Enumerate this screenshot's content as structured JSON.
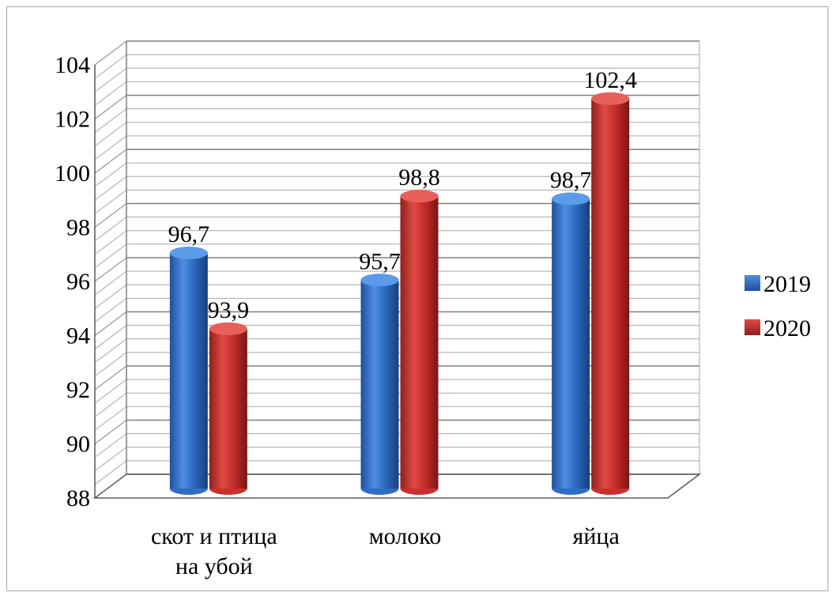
{
  "chart_data": {
    "type": "bar",
    "title": "",
    "xlabel": "",
    "ylabel": "",
    "categories": [
      [
        "скот и птица",
        "на убой"
      ],
      [
        "молоко"
      ],
      [
        "яйца"
      ]
    ],
    "series": [
      {
        "name": "2019",
        "color": "#2f6dc4",
        "values": [
          96.7,
          95.7,
          98.7
        ],
        "labels": [
          "96,7",
          "95,7",
          "98,7"
        ]
      },
      {
        "name": "2020",
        "color": "#c9302c",
        "values": [
          93.9,
          98.8,
          102.4
        ],
        "labels": [
          "93,9",
          "98,8",
          "102,4"
        ]
      }
    ],
    "ylim": [
      88,
      104
    ],
    "yticks": [
      88,
      90,
      92,
      94,
      96,
      98,
      100,
      102,
      104
    ],
    "grid": true,
    "legend_position": "right",
    "style": "3d-cylinder"
  }
}
